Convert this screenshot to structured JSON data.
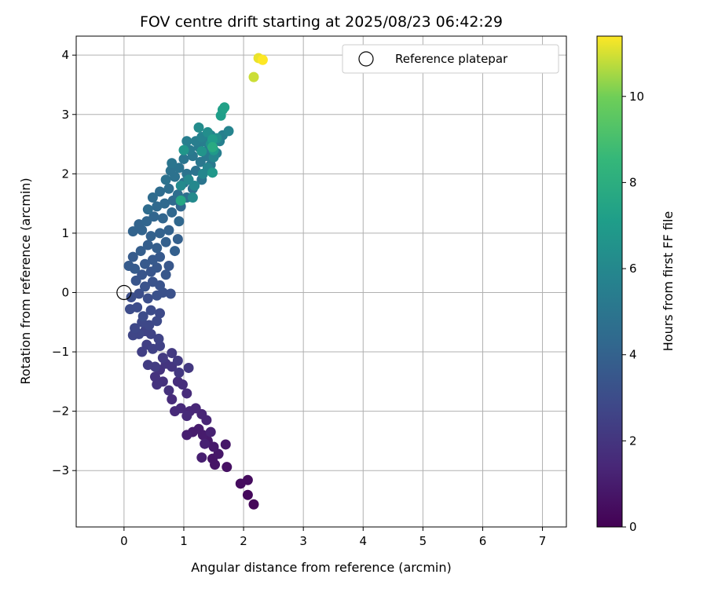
{
  "chart_data": {
    "type": "scatter",
    "title": "FOV centre drift starting at 2025/08/23 06:42:29",
    "xlabel": "Angular distance from reference (arcmin)",
    "ylabel": "Rotation from reference (arcmin)",
    "xlim": [
      -0.8,
      7.4
    ],
    "ylim": [
      -3.95,
      4.32
    ],
    "xticks": [
      0,
      1,
      2,
      3,
      4,
      5,
      6,
      7
    ],
    "yticks": [
      -3,
      -2,
      -1,
      0,
      1,
      2,
      3,
      4
    ],
    "grid": true,
    "legend": {
      "placement": "top-right",
      "entries": [
        "Reference platepar"
      ]
    },
    "reference_point": {
      "x": 0.0,
      "y": 0.0,
      "marker": "open-circle"
    },
    "colorbar": {
      "label": "Hours from first FF file",
      "colormap": "viridis",
      "range": [
        0,
        11.4
      ],
      "ticks": [
        0,
        2,
        4,
        6,
        8,
        10
      ]
    },
    "series": [
      {
        "points": [
          [
            2.17,
            -3.57,
            0.2
          ],
          [
            2.07,
            -3.41,
            0.3
          ],
          [
            2.07,
            -3.16,
            0.4
          ],
          [
            1.95,
            -3.22,
            0.4
          ],
          [
            1.72,
            -2.94,
            0.6
          ],
          [
            1.52,
            -2.9,
            0.7
          ],
          [
            1.48,
            -2.8,
            0.7
          ],
          [
            1.58,
            -2.72,
            0.8
          ],
          [
            1.7,
            -2.56,
            0.8
          ],
          [
            1.5,
            -2.6,
            0.9
          ],
          [
            1.4,
            -2.5,
            0.9
          ],
          [
            1.32,
            -2.4,
            1.0
          ],
          [
            1.25,
            -2.3,
            1.0
          ],
          [
            1.15,
            -2.35,
            1.0
          ],
          [
            1.05,
            -2.4,
            1.1
          ],
          [
            1.3,
            -2.78,
            1.1
          ],
          [
            1.35,
            -2.55,
            1.2
          ],
          [
            1.45,
            -2.35,
            1.2
          ],
          [
            1.38,
            -2.15,
            1.3
          ],
          [
            1.3,
            -2.05,
            1.3
          ],
          [
            1.2,
            -1.95,
            1.4
          ],
          [
            1.1,
            -2.0,
            1.4
          ],
          [
            1.05,
            -2.08,
            1.5
          ],
          [
            0.95,
            -1.95,
            1.5
          ],
          [
            0.85,
            -2.0,
            1.5
          ],
          [
            0.8,
            -1.8,
            1.6
          ],
          [
            1.05,
            -1.7,
            1.6
          ],
          [
            0.98,
            -1.55,
            1.7
          ],
          [
            0.9,
            -1.5,
            1.7
          ],
          [
            0.75,
            -1.65,
            1.8
          ],
          [
            0.65,
            -1.5,
            1.8
          ],
          [
            0.55,
            -1.55,
            1.9
          ],
          [
            0.52,
            -1.42,
            1.9
          ],
          [
            0.6,
            -1.3,
            1.9
          ],
          [
            0.7,
            -1.2,
            2.0
          ],
          [
            0.8,
            -1.25,
            2.0
          ],
          [
            0.92,
            -1.35,
            2.1
          ],
          [
            1.08,
            -1.27,
            2.1
          ],
          [
            0.9,
            -1.15,
            2.2
          ],
          [
            0.8,
            -1.02,
            2.2
          ],
          [
            0.65,
            -1.1,
            2.2
          ],
          [
            0.52,
            -1.25,
            2.3
          ],
          [
            0.4,
            -1.22,
            2.3
          ],
          [
            0.3,
            -1.0,
            2.4
          ],
          [
            0.38,
            -0.88,
            2.4
          ],
          [
            0.48,
            -0.95,
            2.5
          ],
          [
            0.6,
            -0.9,
            2.5
          ],
          [
            0.58,
            -0.78,
            2.6
          ],
          [
            0.45,
            -0.7,
            2.6
          ],
          [
            0.35,
            -0.65,
            2.6
          ],
          [
            0.25,
            -0.7,
            2.7
          ],
          [
            0.15,
            -0.72,
            2.7
          ],
          [
            0.18,
            -0.6,
            2.8
          ],
          [
            0.3,
            -0.5,
            2.8
          ],
          [
            0.42,
            -0.55,
            2.8
          ],
          [
            0.55,
            -0.48,
            2.9
          ],
          [
            0.6,
            -0.35,
            2.9
          ],
          [
            0.45,
            -0.3,
            3.0
          ],
          [
            0.32,
            -0.4,
            3.0
          ],
          [
            0.22,
            -0.25,
            3.0
          ],
          [
            0.1,
            -0.28,
            3.0
          ],
          [
            0.12,
            -0.08,
            3.1
          ],
          [
            0.25,
            -0.02,
            3.1
          ],
          [
            0.4,
            -0.1,
            3.1
          ],
          [
            0.55,
            -0.05,
            3.2
          ],
          [
            0.65,
            0.0,
            3.2
          ],
          [
            0.78,
            -0.02,
            3.2
          ],
          [
            0.6,
            0.12,
            3.3
          ],
          [
            0.48,
            0.18,
            3.3
          ],
          [
            0.35,
            0.1,
            3.3
          ],
          [
            0.2,
            0.2,
            3.4
          ],
          [
            0.3,
            0.3,
            3.4
          ],
          [
            0.45,
            0.35,
            3.4
          ],
          [
            0.55,
            0.42,
            3.5
          ],
          [
            0.7,
            0.3,
            3.5
          ],
          [
            0.75,
            0.45,
            3.5
          ],
          [
            0.6,
            0.6,
            3.6
          ],
          [
            0.48,
            0.55,
            3.6
          ],
          [
            0.35,
            0.48,
            3.6
          ],
          [
            0.18,
            0.4,
            3.7
          ],
          [
            0.08,
            0.45,
            3.7
          ],
          [
            0.15,
            0.6,
            3.7
          ],
          [
            0.28,
            0.7,
            3.8
          ],
          [
            0.4,
            0.8,
            3.8
          ],
          [
            0.55,
            0.75,
            3.8
          ],
          [
            0.7,
            0.85,
            3.9
          ],
          [
            0.85,
            0.7,
            3.9
          ],
          [
            0.9,
            0.9,
            3.9
          ],
          [
            0.75,
            1.05,
            4.0
          ],
          [
            0.6,
            1.0,
            4.0
          ],
          [
            0.45,
            0.95,
            4.0
          ],
          [
            0.3,
            1.05,
            4.1
          ],
          [
            0.15,
            1.03,
            4.1
          ],
          [
            0.25,
            1.15,
            4.1
          ],
          [
            0.38,
            1.2,
            4.2
          ],
          [
            0.5,
            1.28,
            4.2
          ],
          [
            0.65,
            1.25,
            4.2
          ],
          [
            0.8,
            1.35,
            4.3
          ],
          [
            0.92,
            1.2,
            4.3
          ],
          [
            0.95,
            1.45,
            4.3
          ],
          [
            0.82,
            1.55,
            4.4
          ],
          [
            0.68,
            1.5,
            4.4
          ],
          [
            0.55,
            1.45,
            4.4
          ],
          [
            0.4,
            1.4,
            4.5
          ],
          [
            0.48,
            1.6,
            4.5
          ],
          [
            0.6,
            1.7,
            4.5
          ],
          [
            0.75,
            1.75,
            4.6
          ],
          [
            0.9,
            1.65,
            4.6
          ],
          [
            1.05,
            1.6,
            4.7
          ],
          [
            1.15,
            1.75,
            4.7
          ],
          [
            1.0,
            1.85,
            4.7
          ],
          [
            0.85,
            1.95,
            4.8
          ],
          [
            0.7,
            1.9,
            4.8
          ],
          [
            0.78,
            2.05,
            4.8
          ],
          [
            0.92,
            2.1,
            4.9
          ],
          [
            1.05,
            2.0,
            4.9
          ],
          [
            1.2,
            2.05,
            4.9
          ],
          [
            1.3,
            1.9,
            5.0
          ],
          [
            0.8,
            2.18,
            5.0
          ],
          [
            1.0,
            2.25,
            5.0
          ],
          [
            1.15,
            2.3,
            5.1
          ],
          [
            1.28,
            2.2,
            5.1
          ],
          [
            1.38,
            2.3,
            5.2
          ],
          [
            1.45,
            2.15,
            5.2
          ],
          [
            1.1,
            2.4,
            5.3
          ],
          [
            1.25,
            2.45,
            5.3
          ],
          [
            1.4,
            2.4,
            5.3
          ],
          [
            1.48,
            2.48,
            5.4
          ],
          [
            1.35,
            2.55,
            5.4
          ],
          [
            1.2,
            2.55,
            5.5
          ],
          [
            1.05,
            2.55,
            5.5
          ],
          [
            1.55,
            2.35,
            5.5
          ],
          [
            1.6,
            2.55,
            5.6
          ],
          [
            1.65,
            2.65,
            5.6
          ],
          [
            1.45,
            2.65,
            5.7
          ],
          [
            1.3,
            2.62,
            5.7
          ],
          [
            1.75,
            2.72,
            5.8
          ],
          [
            1.4,
            2.1,
            5.8
          ],
          [
            1.32,
            2.0,
            5.9
          ],
          [
            1.5,
            2.28,
            5.9
          ],
          [
            1.18,
            1.8,
            6.0
          ],
          [
            1.08,
            1.9,
            6.0
          ],
          [
            0.95,
            1.8,
            6.1
          ],
          [
            1.15,
            1.6,
            6.1
          ],
          [
            1.25,
            2.78,
            6.2
          ],
          [
            1.4,
            2.7,
            6.3
          ],
          [
            1.55,
            2.6,
            6.4
          ],
          [
            1.45,
            2.5,
            6.5
          ],
          [
            1.3,
            2.38,
            6.6
          ],
          [
            1.0,
            2.4,
            6.7
          ],
          [
            1.48,
            2.02,
            6.8
          ],
          [
            1.5,
            2.4,
            6.9
          ],
          [
            1.48,
            2.58,
            7.0
          ],
          [
            1.62,
            2.98,
            7.1
          ],
          [
            1.65,
            3.08,
            7.2
          ],
          [
            1.68,
            3.12,
            7.3
          ],
          [
            0.95,
            1.55,
            7.6
          ],
          [
            1.48,
            2.45,
            7.8
          ],
          [
            2.17,
            3.63,
            10.9
          ],
          [
            2.25,
            3.95,
            11.2
          ],
          [
            2.32,
            3.92,
            11.4
          ]
        ]
      }
    ]
  }
}
